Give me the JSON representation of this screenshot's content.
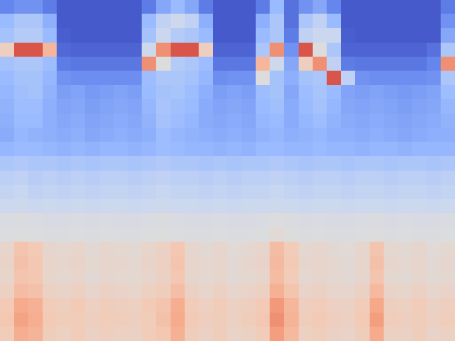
{
  "chart_data": {
    "type": "heatmap",
    "tick_labels": false,
    "zlim": [
      0,
      10
    ],
    "values": [
      [
        1.2,
        1.5,
        1.5,
        1.0,
        0.3,
        0.3,
        0.3,
        0.3,
        0.3,
        0.3,
        1.0,
        2.0,
        2.5,
        2.0,
        1.0,
        0.3,
        0.3,
        0.3,
        1.0,
        2.5,
        0.8,
        1.5,
        2.0,
        1.2,
        0.3,
        0.3,
        0.3,
        0.3,
        0.3,
        0.3,
        0.3,
        1.0
      ],
      [
        2.5,
        3.0,
        3.0,
        2.2,
        0.3,
        0.3,
        0.3,
        0.3,
        0.3,
        0.3,
        2.5,
        3.5,
        4.0,
        3.5,
        2.2,
        0.3,
        0.3,
        0.3,
        2.2,
        3.0,
        0.8,
        3.0,
        3.5,
        2.5,
        0.3,
        0.3,
        0.3,
        0.3,
        0.3,
        0.3,
        0.3,
        1.5
      ],
      [
        2.8,
        3.2,
        3.2,
        2.5,
        0.4,
        0.3,
        0.3,
        0.3,
        0.3,
        0.3,
        2.8,
        3.8,
        3.2,
        3.0,
        2.5,
        0.3,
        0.3,
        0.3,
        2.5,
        3.0,
        1.0,
        3.5,
        3.8,
        3.8,
        0.4,
        0.3,
        0.3,
        0.3,
        0.3,
        0.3,
        0.3,
        2.0
      ],
      [
        6.0,
        9.0,
        9.0,
        7.0,
        0.6,
        0.5,
        0.5,
        0.5,
        0.5,
        0.5,
        4.0,
        8.0,
        9.0,
        9.0,
        6.0,
        0.5,
        0.5,
        0.5,
        3.0,
        8.0,
        1.5,
        9.0,
        5.0,
        3.0,
        0.5,
        0.5,
        0.5,
        0.5,
        0.5,
        0.5,
        0.8,
        3.0
      ],
      [
        2.8,
        3.0,
        3.0,
        2.6,
        1.0,
        0.9,
        0.9,
        0.9,
        0.9,
        0.9,
        8.0,
        5.0,
        3.2,
        3.0,
        2.6,
        0.9,
        0.9,
        0.9,
        7.0,
        4.0,
        2.0,
        6.0,
        8.0,
        3.5,
        1.0,
        0.9,
        0.9,
        0.9,
        0.9,
        0.9,
        1.2,
        8.0
      ],
      [
        2.5,
        2.8,
        2.8,
        2.4,
        1.5,
        1.4,
        1.4,
        1.4,
        1.4,
        1.4,
        2.6,
        3.0,
        3.0,
        2.8,
        2.4,
        1.4,
        1.5,
        1.5,
        5.0,
        2.8,
        2.2,
        2.8,
        3.0,
        9.0,
        3.5,
        1.5,
        1.4,
        1.4,
        1.4,
        1.4,
        1.5,
        3.0
      ],
      [
        2.4,
        2.7,
        2.8,
        2.3,
        1.8,
        1.9,
        1.7,
        1.8,
        1.9,
        1.8,
        2.5,
        2.8,
        2.9,
        2.6,
        2.2,
        1.8,
        1.9,
        1.8,
        2.6,
        2.8,
        2.0,
        2.6,
        2.9,
        2.5,
        1.9,
        1.8,
        1.9,
        1.8,
        1.7,
        1.8,
        1.9,
        2.6
      ],
      [
        2.3,
        2.6,
        2.6,
        2.2,
        1.9,
        2.0,
        1.8,
        1.9,
        2.0,
        1.9,
        2.4,
        2.9,
        2.7,
        2.5,
        2.1,
        1.9,
        2.0,
        1.9,
        2.5,
        2.7,
        2.1,
        2.5,
        2.8,
        2.4,
        2.0,
        1.9,
        2.0,
        1.9,
        1.8,
        1.9,
        2.0,
        2.4
      ],
      [
        2.2,
        2.5,
        2.5,
        2.2,
        2.0,
        2.1,
        1.9,
        2.0,
        2.1,
        2.0,
        2.3,
        2.8,
        2.6,
        2.4,
        2.1,
        2.0,
        2.1,
        2.0,
        2.4,
        2.5,
        2.1,
        2.4,
        2.6,
        2.3,
        2.1,
        2.0,
        2.1,
        2.0,
        1.9,
        2.0,
        2.1,
        2.3
      ],
      [
        2.1,
        2.4,
        2.3,
        2.2,
        2.1,
        2.2,
        2.0,
        2.1,
        2.2,
        2.1,
        2.2,
        2.6,
        2.4,
        2.3,
        2.2,
        2.1,
        2.2,
        2.1,
        2.3,
        2.4,
        2.2,
        2.3,
        2.4,
        2.2,
        2.2,
        2.1,
        2.2,
        2.1,
        2.0,
        2.1,
        2.2,
        2.2
      ],
      [
        2.4,
        2.5,
        2.5,
        2.4,
        2.3,
        2.4,
        2.3,
        2.4,
        2.4,
        2.3,
        2.4,
        2.6,
        2.5,
        2.4,
        2.4,
        2.3,
        2.4,
        2.3,
        2.5,
        2.5,
        2.4,
        2.4,
        2.5,
        2.4,
        2.4,
        2.3,
        2.4,
        2.4,
        2.3,
        2.4,
        2.4,
        2.4
      ],
      [
        3.0,
        3.1,
        3.0,
        3.0,
        2.9,
        3.0,
        2.9,
        3.0,
        3.0,
        2.9,
        3.0,
        3.1,
        3.0,
        3.0,
        2.9,
        3.0,
        2.9,
        3.0,
        3.0,
        3.1,
        3.0,
        2.9,
        3.0,
        3.0,
        2.9,
        3.0,
        3.0,
        2.9,
        3.0,
        3.0,
        2.9,
        3.0
      ],
      [
        3.4,
        3.5,
        3.3,
        3.4,
        3.3,
        3.4,
        3.3,
        3.4,
        3.4,
        3.3,
        3.4,
        3.5,
        3.4,
        3.4,
        3.3,
        3.4,
        3.3,
        3.4,
        3.4,
        3.5,
        3.4,
        3.3,
        3.4,
        3.4,
        3.3,
        3.4,
        3.4,
        3.3,
        3.4,
        3.4,
        3.3,
        3.4
      ],
      [
        3.6,
        3.7,
        3.5,
        3.6,
        3.5,
        3.6,
        3.5,
        3.6,
        3.6,
        3.5,
        3.6,
        3.7,
        3.6,
        3.6,
        3.5,
        3.6,
        3.5,
        3.6,
        3.6,
        3.7,
        3.6,
        3.5,
        3.6,
        3.6,
        3.5,
        3.6,
        3.6,
        3.5,
        3.6,
        3.6,
        3.5,
        3.6
      ],
      [
        3.9,
        4.0,
        3.8,
        3.9,
        3.8,
        3.9,
        3.8,
        3.9,
        3.9,
        3.8,
        3.9,
        4.0,
        3.9,
        3.9,
        3.8,
        3.9,
        3.8,
        3.9,
        3.9,
        4.0,
        3.9,
        3.8,
        3.9,
        3.9,
        3.8,
        3.9,
        3.9,
        3.8,
        3.9,
        3.9,
        3.8,
        3.9
      ],
      [
        4.7,
        4.8,
        4.7,
        4.6,
        4.6,
        4.7,
        4.6,
        4.7,
        4.6,
        4.6,
        4.7,
        4.8,
        4.7,
        4.6,
        4.6,
        4.7,
        4.6,
        4.6,
        4.7,
        4.9,
        4.8,
        4.6,
        4.7,
        4.6,
        4.6,
        4.7,
        4.8,
        4.6,
        4.7,
        4.6,
        4.6,
        4.7
      ],
      [
        4.9,
        5.0,
        4.9,
        4.8,
        4.8,
        4.9,
        4.8,
        4.9,
        4.8,
        4.8,
        4.9,
        5.0,
        4.9,
        4.8,
        4.8,
        4.9,
        4.8,
        4.8,
        4.9,
        5.2,
        5.0,
        4.8,
        4.9,
        4.8,
        4.8,
        4.9,
        5.0,
        4.8,
        4.9,
        4.8,
        4.8,
        4.9
      ],
      [
        5.6,
        6.5,
        6.3,
        5.5,
        5.4,
        5.6,
        5.3,
        5.5,
        5.4,
        5.3,
        5.6,
        5.8,
        6.4,
        5.5,
        5.3,
        5.5,
        5.2,
        5.4,
        5.6,
        6.8,
        6.2,
        5.4,
        5.5,
        5.3,
        5.2,
        5.5,
        6.5,
        5.4,
        5.3,
        5.5,
        5.2,
        5.4
      ],
      [
        5.7,
        6.6,
        6.4,
        5.6,
        5.5,
        5.7,
        5.4,
        5.6,
        5.5,
        5.4,
        5.7,
        5.9,
        6.5,
        5.6,
        5.4,
        5.6,
        5.3,
        5.5,
        5.7,
        6.9,
        6.3,
        5.5,
        5.6,
        5.4,
        5.3,
        5.6,
        6.6,
        5.5,
        5.4,
        5.6,
        5.3,
        5.5
      ],
      [
        5.6,
        6.5,
        6.4,
        5.6,
        5.4,
        5.6,
        5.3,
        5.5,
        5.4,
        5.4,
        5.6,
        5.8,
        6.4,
        5.5,
        5.4,
        5.5,
        5.3,
        5.4,
        5.6,
        6.8,
        6.2,
        5.4,
        5.5,
        5.4,
        5.3,
        5.5,
        6.5,
        5.4,
        5.3,
        5.5,
        5.3,
        5.4
      ],
      [
        5.9,
        6.8,
        6.6,
        5.8,
        5.7,
        5.9,
        5.6,
        5.8,
        5.7,
        5.6,
        5.9,
        6.1,
        6.7,
        5.8,
        5.6,
        5.8,
        5.5,
        5.7,
        5.9,
        7.2,
        6.5,
        5.7,
        5.8,
        5.6,
        5.5,
        5.8,
        6.9,
        5.7,
        5.6,
        5.8,
        5.5,
        5.7
      ],
      [
        6.3,
        7.4,
        7.2,
        6.2,
        6.0,
        6.3,
        5.9,
        6.1,
        6.0,
        5.9,
        6.3,
        6.5,
        7.3,
        6.2,
        5.9,
        6.2,
        5.8,
        6.0,
        6.3,
        7.8,
        7.0,
        6.0,
        6.2,
        5.9,
        5.8,
        6.2,
        7.5,
        6.0,
        5.9,
        6.2,
        5.8,
        6.0
      ],
      [
        6.4,
        7.6,
        7.3,
        6.3,
        6.1,
        6.2,
        6.0,
        6.2,
        6.1,
        6.0,
        6.2,
        6.6,
        7.4,
        6.3,
        6.0,
        6.1,
        5.9,
        6.1,
        6.4,
        8.0,
        7.1,
        6.1,
        6.3,
        6.0,
        5.9,
        6.3,
        7.7,
        6.1,
        6.0,
        6.1,
        5.9,
        6.1
      ],
      [
        6.2,
        7.3,
        7.1,
        6.1,
        5.9,
        6.2,
        5.8,
        6.0,
        5.9,
        5.8,
        6.2,
        6.4,
        7.2,
        6.1,
        5.8,
        6.1,
        5.7,
        5.9,
        6.2,
        7.7,
        6.9,
        5.9,
        6.1,
        5.8,
        5.7,
        6.1,
        7.4,
        5.9,
        5.8,
        6.1,
        5.7,
        5.9
      ]
    ]
  }
}
